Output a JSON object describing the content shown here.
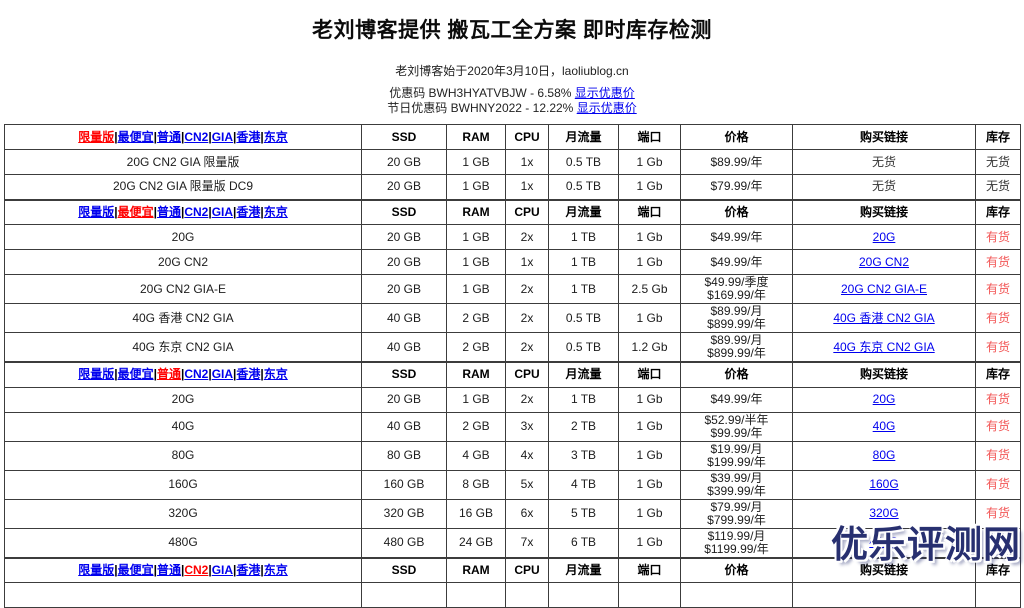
{
  "page": {
    "title": "老刘博客提供 搬瓦工全方案 即时库存检测",
    "subtitle": "老刘博客始于2020年3月10日，laoliublog.cn",
    "coupons": [
      {
        "text": "优惠码 BWH3HYATVBJW - 6.58% ",
        "link_label": "显示优惠价"
      },
      {
        "text": "节日优惠码 BWHNY2022 - 12.22% ",
        "link_label": "显示优惠价"
      }
    ]
  },
  "colors": {
    "link": "#0000EE",
    "active_nav": "#FF0000",
    "in_stock": "#F25555",
    "out_of_stock": "#333333"
  },
  "table": {
    "nav_items": [
      "限量版",
      "最便宜",
      "普通",
      "CN2",
      "GIA",
      "香港",
      "东京"
    ],
    "columns": [
      "SSD",
      "RAM",
      "CPU",
      "月流量",
      "端口",
      "价格",
      "购买链接",
      "库存"
    ],
    "sections": [
      {
        "active_nav": "限量版",
        "name_align": "center",
        "rows": [
          {
            "name": "20G CN2 GIA 限量版",
            "ssd": "20 GB",
            "ram": "1 GB",
            "cpu": "1x",
            "traffic": "0.5 TB",
            "port": "1 Gb",
            "prices": [
              "$89.99/年"
            ],
            "buy": "无货",
            "buy_is_link": false,
            "stock": "无货",
            "in_stock": false
          },
          {
            "name": "20G CN2 GIA 限量版 DC9",
            "ssd": "20 GB",
            "ram": "1 GB",
            "cpu": "1x",
            "traffic": "0.5 TB",
            "port": "1 Gb",
            "prices": [
              "$79.99/年"
            ],
            "buy": "无货",
            "buy_is_link": false,
            "stock": "无货",
            "in_stock": false
          }
        ]
      },
      {
        "active_nav": "最便宜",
        "name_align": "left",
        "rows": [
          {
            "name": "20G",
            "ssd": "20 GB",
            "ram": "1 GB",
            "cpu": "2x",
            "traffic": "1 TB",
            "port": "1 Gb",
            "prices": [
              "$49.99/年"
            ],
            "buy": "20G",
            "buy_is_link": true,
            "stock": "有货",
            "in_stock": true
          },
          {
            "name": "20G CN2",
            "ssd": "20 GB",
            "ram": "1 GB",
            "cpu": "1x",
            "traffic": "1 TB",
            "port": "1 Gb",
            "prices": [
              "$49.99/年"
            ],
            "buy": "20G CN2",
            "buy_is_link": true,
            "stock": "有货",
            "in_stock": true
          },
          {
            "name": "20G CN2 GIA-E",
            "ssd": "20 GB",
            "ram": "1 GB",
            "cpu": "2x",
            "traffic": "1 TB",
            "port": "2.5 Gb",
            "prices": [
              "$49.99/季度",
              "$169.99/年"
            ],
            "buy": "20G CN2 GIA-E",
            "buy_is_link": true,
            "stock": "有货",
            "in_stock": true
          },
          {
            "name": "40G 香港 CN2 GIA",
            "ssd": "40 GB",
            "ram": "2 GB",
            "cpu": "2x",
            "traffic": "0.5 TB",
            "port": "1 Gb",
            "prices": [
              "$89.99/月",
              "$899.99/年"
            ],
            "buy": "40G 香港 CN2 GIA",
            "buy_is_link": true,
            "stock": "有货",
            "in_stock": true
          },
          {
            "name": "40G 东京 CN2 GIA",
            "ssd": "40 GB",
            "ram": "2 GB",
            "cpu": "2x",
            "traffic": "0.5 TB",
            "port": "1.2 Gb",
            "prices": [
              "$89.99/月",
              "$899.99/年"
            ],
            "buy": "40G 东京 CN2 GIA",
            "buy_is_link": true,
            "stock": "有货",
            "in_stock": true
          }
        ]
      },
      {
        "active_nav": "普通",
        "name_align": "center",
        "rows": [
          {
            "name": "20G",
            "ssd": "20 GB",
            "ram": "1 GB",
            "cpu": "2x",
            "traffic": "1 TB",
            "port": "1 Gb",
            "prices": [
              "$49.99/年"
            ],
            "buy": "20G",
            "buy_is_link": true,
            "stock": "有货",
            "in_stock": true
          },
          {
            "name": "40G",
            "ssd": "40 GB",
            "ram": "2 GB",
            "cpu": "3x",
            "traffic": "2 TB",
            "port": "1 Gb",
            "prices": [
              "$52.99/半年",
              "$99.99/年"
            ],
            "buy": "40G",
            "buy_is_link": true,
            "stock": "有货",
            "in_stock": true
          },
          {
            "name": "80G",
            "ssd": "80 GB",
            "ram": "4 GB",
            "cpu": "4x",
            "traffic": "3 TB",
            "port": "1 Gb",
            "prices": [
              "$19.99/月",
              "$199.99/年"
            ],
            "buy": "80G",
            "buy_is_link": true,
            "stock": "有货",
            "in_stock": true
          },
          {
            "name": "160G",
            "ssd": "160 GB",
            "ram": "8 GB",
            "cpu": "5x",
            "traffic": "4 TB",
            "port": "1 Gb",
            "prices": [
              "$39.99/月",
              "$399.99/年"
            ],
            "buy": "160G",
            "buy_is_link": true,
            "stock": "有货",
            "in_stock": true
          },
          {
            "name": "320G",
            "ssd": "320 GB",
            "ram": "16 GB",
            "cpu": "6x",
            "traffic": "5 TB",
            "port": "1 Gb",
            "prices": [
              "$79.99/月",
              "$799.99/年"
            ],
            "buy": "320G",
            "buy_is_link": true,
            "stock": "有货",
            "in_stock": true
          },
          {
            "name": "480G",
            "ssd": "480 GB",
            "ram": "24 GB",
            "cpu": "7x",
            "traffic": "6 TB",
            "port": "1 Gb",
            "prices": [
              "$119.99/月",
              "$1199.99/年"
            ],
            "buy": "480G",
            "buy_is_link": true,
            "stock": "有货",
            "in_stock": true
          }
        ]
      },
      {
        "active_nav": "CN2",
        "name_align": "center",
        "rows": []
      }
    ]
  },
  "watermark": {
    "text": "优乐评测网"
  }
}
